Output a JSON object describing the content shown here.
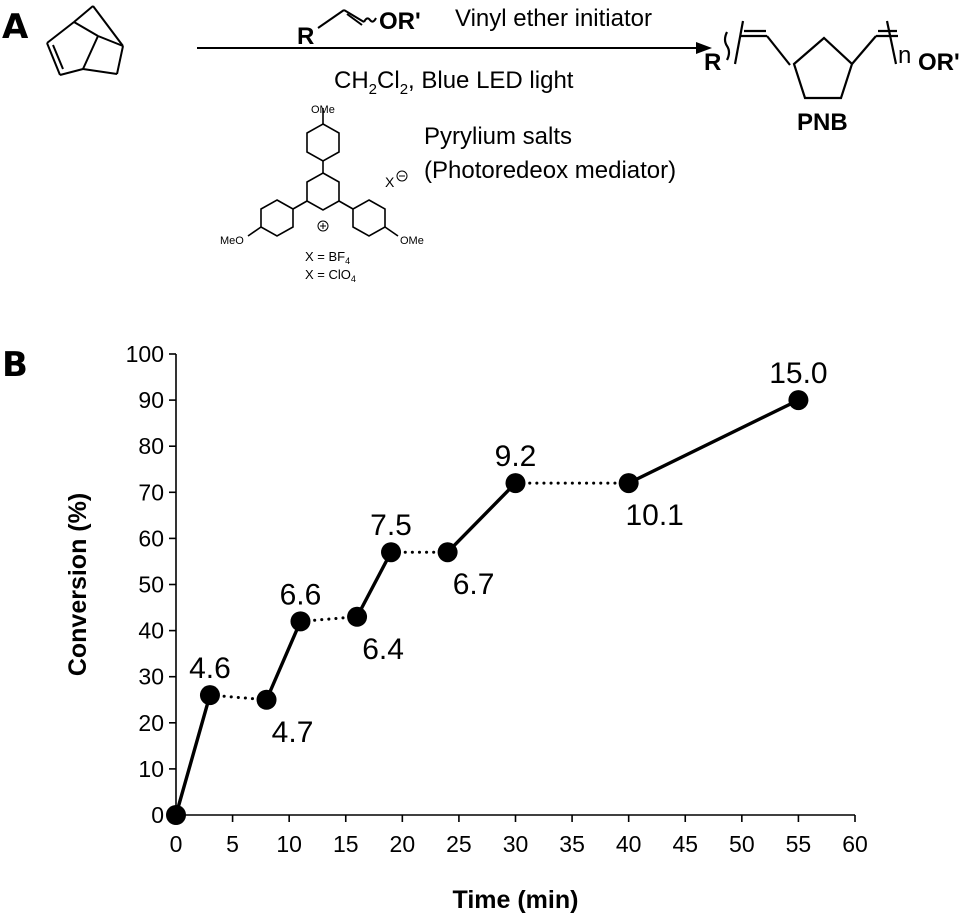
{
  "scheme": {
    "panel_letter": "A",
    "initiator_label": "Vinyl ether initiator",
    "initiator_R": "R",
    "initiator_OR": "OR'",
    "conditions_prefix": "CH",
    "conditions_sub1": "2",
    "conditions_mid": "Cl",
    "conditions_sub2": "2",
    "conditions_suffix": ", Blue LED light",
    "catalyst_line1": "Pyrylium salts",
    "catalyst_line2": "(Photoredeox mediator)",
    "counterion": "X",
    "ome_top": "OMe",
    "ome_left": "MeO",
    "ome_right": "OMe",
    "x_bf4_prefix": "X = BF",
    "x_bf4_sub": "4",
    "x_clo4_prefix": "X = ClO",
    "x_clo4_sub": "4",
    "product_R": "R",
    "product_n": "n",
    "product_OR": "OR'",
    "product_name": "PNB"
  },
  "chart_data": {
    "type": "line",
    "panel_letter": "B",
    "xlabel": "Time (min)",
    "ylabel": "Conversion (%)",
    "xlim": [
      0,
      60
    ],
    "ylim": [
      0,
      100
    ],
    "x_ticks": [
      0,
      5,
      10,
      15,
      20,
      25,
      30,
      35,
      40,
      45,
      50,
      55,
      60
    ],
    "y_ticks": [
      0,
      10,
      20,
      30,
      40,
      50,
      60,
      70,
      80,
      90,
      100
    ],
    "grid": false,
    "legend": "none",
    "points": [
      {
        "x": 0,
        "y": 0,
        "label": ""
      },
      {
        "x": 3,
        "y": 26,
        "label": "4.6"
      },
      {
        "x": 8,
        "y": 25,
        "label": "4.7"
      },
      {
        "x": 11,
        "y": 42,
        "label": "6.6"
      },
      {
        "x": 16,
        "y": 43,
        "label": "6.4"
      },
      {
        "x": 19,
        "y": 57,
        "label": "7.5"
      },
      {
        "x": 24,
        "y": 57,
        "label": "6.7"
      },
      {
        "x": 30,
        "y": 72,
        "label": "9.2"
      },
      {
        "x": 40,
        "y": 72,
        "label": "10.1"
      },
      {
        "x": 55,
        "y": 90,
        "label": "15.0"
      }
    ],
    "segments": [
      "solid",
      "dotted",
      "solid",
      "dotted",
      "solid",
      "dotted",
      "solid",
      "dotted",
      "solid"
    ],
    "label_positions": [
      "none",
      "above",
      "below",
      "above",
      "below",
      "above",
      "below",
      "above",
      "below",
      "above"
    ],
    "color": "#000000"
  }
}
